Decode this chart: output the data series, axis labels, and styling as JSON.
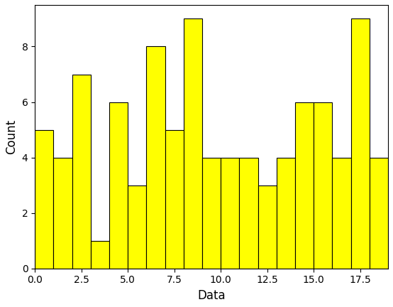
{
  "bin_counts": [
    5,
    4,
    7,
    1,
    6,
    3,
    8,
    5,
    9,
    4,
    4,
    4,
    3,
    4,
    6,
    6,
    4,
    9,
    4
  ],
  "bin_width": 1.0,
  "bin_start": 0.0,
  "bar_color": "#ffff00",
  "bar_edgecolor": "#000000",
  "xlabel": "Data",
  "ylabel": "Count",
  "xlim": [
    0.0,
    19.0
  ],
  "ylim": [
    0,
    9.5
  ],
  "xticks": [
    0.0,
    2.5,
    5.0,
    7.5,
    10.0,
    12.5,
    15.0,
    17.5
  ],
  "yticks": [
    0,
    2,
    4,
    6,
    8
  ],
  "figsize": [
    5.54,
    4.32
  ],
  "dpi": 100,
  "xlabel_fontsize": 12,
  "ylabel_fontsize": 12,
  "tick_fontsize": 10
}
